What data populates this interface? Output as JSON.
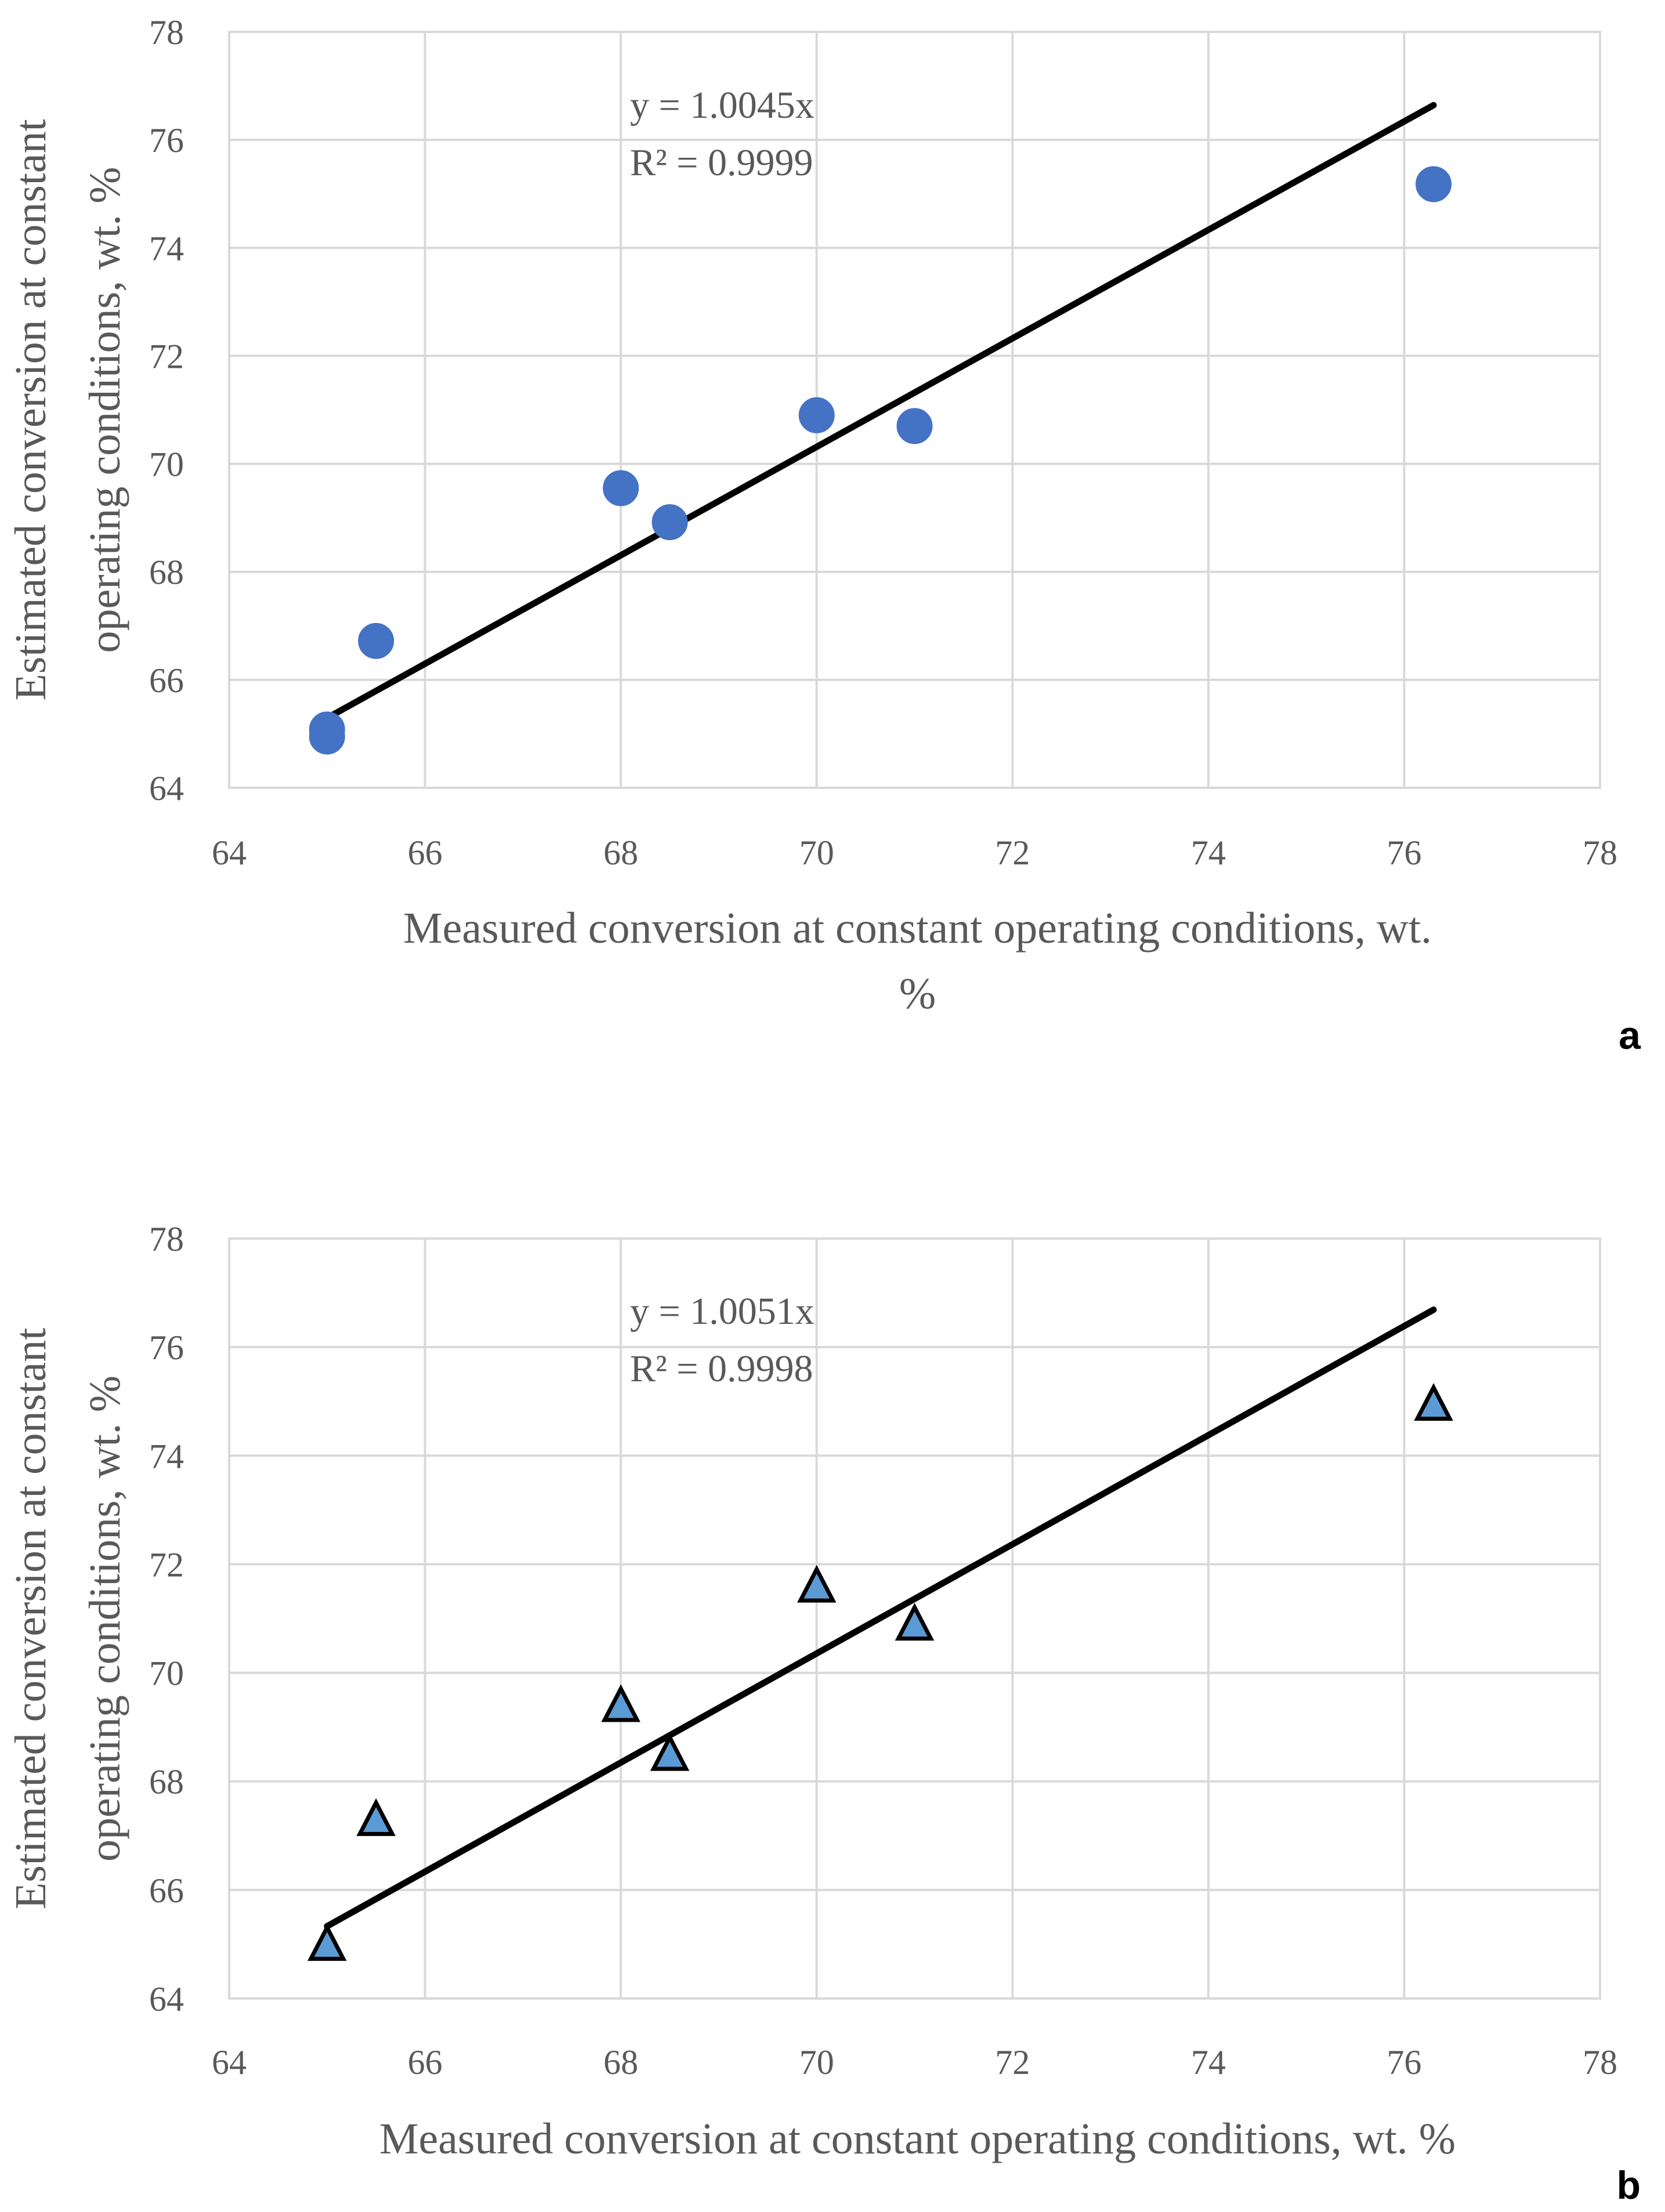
{
  "chart_data": [
    {
      "type": "scatter",
      "panel_label": "a",
      "marker": "circle",
      "xlabel_lines": [
        "Measured conversion at constant operating conditions, wt.",
        "%"
      ],
      "ylabel_lines": [
        "Estimated conversion at constant",
        "operating conditions, wt. %"
      ],
      "xlim": [
        64,
        78
      ],
      "ylim": [
        64,
        78
      ],
      "xticks": [
        64,
        66,
        68,
        70,
        72,
        74,
        76,
        78
      ],
      "yticks": [
        64,
        66,
        68,
        70,
        72,
        74,
        76,
        78
      ],
      "grid": true,
      "points": [
        {
          "x": 65.0,
          "y": 65.08
        },
        {
          "x": 65.0,
          "y": 64.95
        },
        {
          "x": 65.5,
          "y": 66.72
        },
        {
          "x": 68.0,
          "y": 69.55
        },
        {
          "x": 68.5,
          "y": 68.92
        },
        {
          "x": 70.0,
          "y": 70.9
        },
        {
          "x": 71.0,
          "y": 70.7
        },
        {
          "x": 76.3,
          "y": 75.18
        }
      ],
      "trendline": {
        "slope": 1.0045,
        "x_range": [
          65.0,
          76.3
        ]
      },
      "equation_text": "y = 1.0045x",
      "r2_text": "R² = 0.9999",
      "colors": {
        "marker_fill": "#4472C4",
        "marker_stroke": "#4472C4",
        "trend": "#000000",
        "grid": "#D9D9D9"
      }
    },
    {
      "type": "scatter",
      "panel_label": "b",
      "marker": "triangle",
      "xlabel_lines": [
        "Measured conversion at constant operating conditions, wt. %"
      ],
      "ylabel_lines": [
        "Estimated conversion at constant",
        "operating conditions, wt. %"
      ],
      "xlim": [
        64,
        78
      ],
      "ylim": [
        64,
        78
      ],
      "xticks": [
        64,
        66,
        68,
        70,
        72,
        74,
        76,
        78
      ],
      "yticks": [
        64,
        66,
        68,
        70,
        72,
        74,
        76,
        78
      ],
      "grid": true,
      "points": [
        {
          "x": 65.0,
          "y": 64.95
        },
        {
          "x": 65.5,
          "y": 67.25
        },
        {
          "x": 68.0,
          "y": 69.35
        },
        {
          "x": 68.5,
          "y": 68.45
        },
        {
          "x": 70.0,
          "y": 71.55
        },
        {
          "x": 71.0,
          "y": 70.85
        },
        {
          "x": 76.3,
          "y": 74.9
        }
      ],
      "trendline": {
        "slope": 1.0051,
        "x_range": [
          65.0,
          76.3
        ]
      },
      "equation_text": "y = 1.0051x",
      "r2_text": "R² = 0.9998",
      "colors": {
        "marker_fill": "#5B9BD5",
        "marker_stroke": "#000000",
        "trend": "#000000",
        "grid": "#D9D9D9"
      }
    }
  ]
}
